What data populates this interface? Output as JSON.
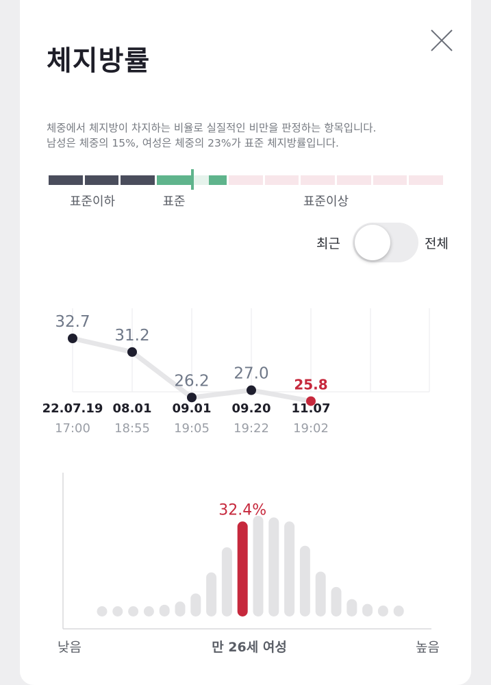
{
  "title": "체지방률",
  "description": [
    "체중에서 체지방이 차지하는 비율로 실질적인 비만을 판정하는 항목입니다.",
    "남성은 체중의 15%, 여성은 체중의 23%가 표준 체지방률입니다."
  ],
  "scale": {
    "labels": [
      "표준이하",
      "표준",
      "표준이상"
    ],
    "colors": {
      "below": "#4a4d5c",
      "standard": "#5fb48c",
      "standard_light": "#e6f3ec",
      "above": "#f8e6ea"
    },
    "current_level": 0.3
  },
  "toggle": {
    "left_label": "최근",
    "right_label": "전체",
    "selected": "최근"
  },
  "history": {
    "values": [
      32.7,
      31.2,
      26.2,
      27.0,
      25.8
    ],
    "value_labels": [
      "32.7",
      "31.2",
      "26.2",
      "27.0",
      "25.8"
    ],
    "dates": [
      "22.07.19",
      "08.01",
      "09.01",
      "09.20",
      "11.07"
    ],
    "times": [
      "17:00",
      "18:55",
      "19:05",
      "19:22",
      "19:02"
    ],
    "highlight_color": "#c6283c",
    "point_color": "#1e1e2e"
  },
  "chart_data": {
    "type": "bar",
    "highlight_value_label": "32.4%",
    "highlight_index": 9,
    "values": [
      1,
      1,
      1,
      1,
      1.2,
      1.6,
      2.6,
      5.2,
      8.3,
      11.5,
      12.2,
      12.0,
      11.5,
      8.5,
      5.3,
      3.4,
      1.9,
      1.3,
      1.1,
      1.1
    ],
    "x_label_left": "낮음",
    "x_label_right": "높음",
    "x_label_center": "만 26세 여성",
    "bar_color": "#e3e3e5",
    "highlight_color": "#c6283c"
  }
}
